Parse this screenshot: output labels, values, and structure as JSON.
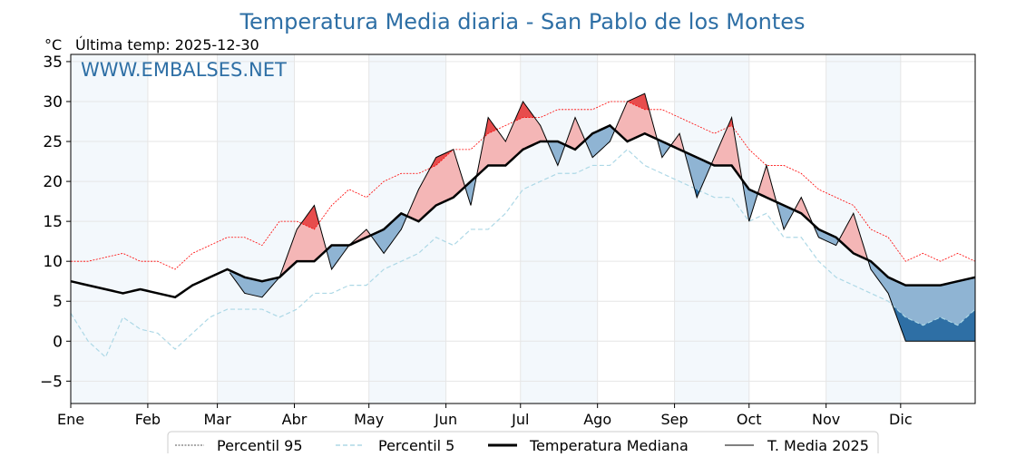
{
  "chart_data": {
    "type": "line",
    "title": "Temperatura Media diaria - San Pablo de los Montes",
    "ylabel": "°C",
    "subtitle": "Última temp: 2025-12-30",
    "watermark": "WWW.EMBALSES.NET",
    "ylim": [
      -7.8,
      35.9
    ],
    "yticks": [
      -5,
      0,
      5,
      10,
      15,
      20,
      25,
      30,
      35
    ],
    "ytick_labels": [
      "−5",
      "0",
      "5",
      "10",
      "15",
      "20",
      "25",
      "30",
      "35"
    ],
    "months": [
      "Ene",
      "Feb",
      "Mar",
      "Abr",
      "May",
      "Jun",
      "Jul",
      "Ago",
      "Sep",
      "Oct",
      "Nov",
      "Dic"
    ],
    "month_start_days": [
      0,
      31,
      59,
      90,
      120,
      151,
      181,
      212,
      243,
      273,
      304,
      334
    ],
    "grid": true,
    "legend_placement": "bottom-center",
    "x_days": [
      0,
      7,
      14,
      21,
      28,
      35,
      42,
      49,
      56,
      63,
      70,
      77,
      84,
      91,
      98,
      105,
      112,
      119,
      126,
      133,
      140,
      147,
      154,
      161,
      168,
      175,
      182,
      189,
      196,
      203,
      210,
      217,
      224,
      231,
      238,
      245,
      252,
      259,
      266,
      273,
      280,
      287,
      294,
      301,
      308,
      315,
      322,
      329,
      336,
      343,
      350,
      357,
      364
    ],
    "series": [
      {
        "name": "Percentil 95",
        "color": "#ff0000",
        "values": [
          10,
          10,
          10.5,
          11,
          10,
          10,
          9,
          11,
          12,
          13,
          13,
          12,
          15,
          15,
          14,
          17,
          19,
          18,
          20,
          21,
          21,
          22,
          24,
          24,
          26,
          27,
          28,
          28,
          29,
          29,
          29,
          30,
          30,
          29,
          29,
          28,
          27,
          26,
          27,
          24,
          22,
          22,
          21,
          19,
          18,
          17,
          14,
          13,
          10,
          11,
          10,
          11,
          10
        ]
      },
      {
        "name": "Percentil 5",
        "color": "#add8e6",
        "values": [
          3.5,
          0,
          -2,
          3,
          1.5,
          1,
          -1,
          1,
          3,
          4,
          4,
          4,
          3,
          4,
          6,
          6,
          7,
          7,
          9,
          10,
          11,
          13,
          12,
          14,
          14,
          16,
          19,
          20,
          21,
          21,
          22,
          22,
          24,
          22,
          21,
          20,
          19,
          18,
          18,
          15,
          16,
          13,
          13,
          10,
          8,
          7,
          6,
          5,
          3,
          2,
          3,
          2,
          4
        ]
      },
      {
        "name": "Temperatura Mediana",
        "color": "#000000",
        "values": [
          7.5,
          7,
          6.5,
          6,
          6.5,
          6,
          5.5,
          7,
          8,
          9,
          8,
          7.5,
          8,
          10,
          10,
          12,
          12,
          13,
          14,
          16,
          15,
          17,
          18,
          20,
          22,
          22,
          24,
          25,
          25,
          24,
          26,
          27,
          25,
          26,
          25,
          24,
          23,
          22,
          22,
          19,
          18,
          17,
          16,
          14,
          13,
          11,
          10,
          8,
          7,
          7,
          7,
          7.5,
          8
        ]
      },
      {
        "name": "T. Media 2025",
        "color": "#000000",
        "values": [
          null,
          null,
          null,
          null,
          null,
          null,
          null,
          null,
          null,
          9,
          6,
          5.5,
          8,
          14,
          17,
          9,
          12,
          14,
          11,
          14,
          19,
          23,
          24,
          17,
          28,
          25,
          30,
          27,
          22,
          28,
          23,
          25,
          30,
          31,
          23,
          26,
          18,
          23,
          28,
          15,
          22,
          14,
          18,
          13,
          12,
          16,
          9,
          6,
          0,
          0,
          0,
          0,
          0
        ]
      }
    ],
    "fill_colors": {
      "above": "#f4b6b6",
      "above_p95": "#e74c4c",
      "below": "#8fb4d3",
      "below_p5": "#2e6fa5"
    }
  }
}
